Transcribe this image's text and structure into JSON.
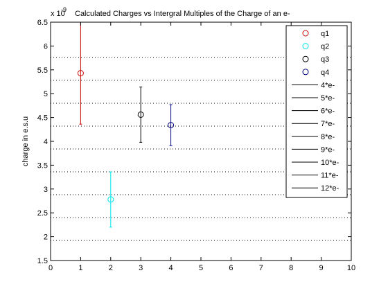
{
  "chart_data": {
    "type": "scatter",
    "title": "Calculated Charges vs Intergral Multiples of the Charge of an e-",
    "xlabel": "",
    "ylabel": "charge in e.s.u",
    "y_exponent_base": "x 10",
    "y_exponent_power": "-9",
    "xlim": [
      0,
      10
    ],
    "ylim": [
      1.5,
      6.5
    ],
    "xticks": [
      0,
      1,
      2,
      3,
      4,
      5,
      6,
      7,
      8,
      9,
      10
    ],
    "yticks": [
      1.5,
      2,
      2.5,
      3,
      3.5,
      4,
      4.5,
      5,
      5.5,
      6,
      6.5
    ],
    "xtick_labels": [
      "0",
      "1",
      "2",
      "3",
      "4",
      "5",
      "6",
      "7",
      "8",
      "9",
      "10"
    ],
    "ytick_labels": [
      "1.5",
      "2",
      "2.5",
      "3",
      "3.5",
      "4",
      "4.5",
      "5",
      "5.5",
      "6",
      "6.5"
    ],
    "legend_position": "top-right",
    "series": [
      {
        "name": "q1",
        "x": 1,
        "y": 5.43,
        "err": 1.07,
        "color": "#cc0000",
        "marker": "circle"
      },
      {
        "name": "q2",
        "x": 2,
        "y": 2.78,
        "err": 0.58,
        "color": "#00e5e5",
        "marker": "circle"
      },
      {
        "name": "q3",
        "x": 3,
        "y": 4.56,
        "err": 0.58,
        "color": "#000000",
        "marker": "circle"
      },
      {
        "name": "q4",
        "x": 4,
        "y": 4.34,
        "err": 0.43,
        "color": "#000080",
        "marker": "circle"
      }
    ],
    "reference_lines": [
      {
        "name": "4*e-",
        "y": 1.92
      },
      {
        "name": "5*e-",
        "y": 2.4
      },
      {
        "name": "6*e-",
        "y": 2.88
      },
      {
        "name": "7*e-",
        "y": 3.36
      },
      {
        "name": "8*e-",
        "y": 3.84
      },
      {
        "name": "9*e-",
        "y": 4.32
      },
      {
        "name": "10*e-",
        "y": 4.8
      },
      {
        "name": "11*e-",
        "y": 5.28
      },
      {
        "name": "12*e-",
        "y": 5.76
      }
    ],
    "reference_line_color": "#000000",
    "reference_line_style": "dotted"
  }
}
